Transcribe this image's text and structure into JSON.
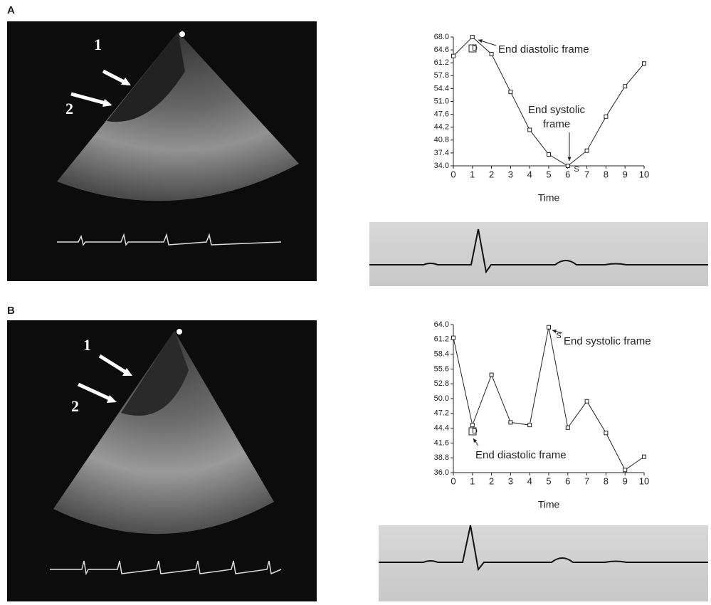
{
  "panels": [
    {
      "label": "A",
      "image_labels": [
        "1",
        "2"
      ]
    },
    {
      "label": "B",
      "image_labels": [
        "1",
        "2"
      ]
    }
  ],
  "chart_data": [
    {
      "type": "line",
      "x_label": "Time",
      "x": [
        0,
        1,
        2,
        3,
        4,
        5,
        6,
        7,
        8,
        9,
        10
      ],
      "values": [
        63.0,
        68.0,
        63.5,
        53.5,
        43.5,
        37.0,
        34.0,
        38.0,
        47.0,
        55.0,
        61.0
      ],
      "color": "#222222",
      "xlim": [
        0,
        10
      ],
      "xticks": [
        0,
        1,
        2,
        3,
        4,
        5,
        6,
        7,
        8,
        9,
        10
      ],
      "ylim": [
        34,
        68
      ],
      "yticks": [
        {
          "value": 34,
          "label": "34.0"
        },
        37.4,
        40.8,
        44.2,
        47.6,
        {
          "value": 51,
          "label": "51.0"
        },
        54.4,
        57.8,
        61.2,
        64.6,
        {
          "value": 68,
          "label": "68.0"
        }
      ],
      "markers": [
        "D",
        "S"
      ],
      "annotations": [
        [
          "End diastolic frame"
        ],
        [
          "End systolic",
          "frame"
        ]
      ]
    },
    {
      "type": "line",
      "x_label": "Time",
      "x": [
        0,
        1,
        2,
        3,
        4,
        5,
        6,
        7,
        8,
        9,
        10
      ],
      "values": [
        61.5,
        45.0,
        54.5,
        45.5,
        45.0,
        63.5,
        44.5,
        49.5,
        43.5,
        36.5,
        39.0
      ],
      "color": "#222222",
      "xlim": [
        0,
        10
      ],
      "xticks": [
        0,
        1,
        2,
        3,
        4,
        5,
        6,
        7,
        8,
        9,
        10
      ],
      "ylim": [
        36,
        64
      ],
      "yticks": [
        {
          "value": 36,
          "label": "36.0"
        },
        38.8,
        41.6,
        44.4,
        47.2,
        {
          "value": 50,
          "label": "50.0"
        },
        52.8,
        55.6,
        58.4,
        61.2,
        {
          "value": 64,
          "label": "64.0"
        }
      ],
      "markers": [
        "D",
        "S"
      ],
      "annotations": [
        [
          "End systolic frame"
        ],
        [
          "End diastolic frame"
        ]
      ]
    }
  ]
}
